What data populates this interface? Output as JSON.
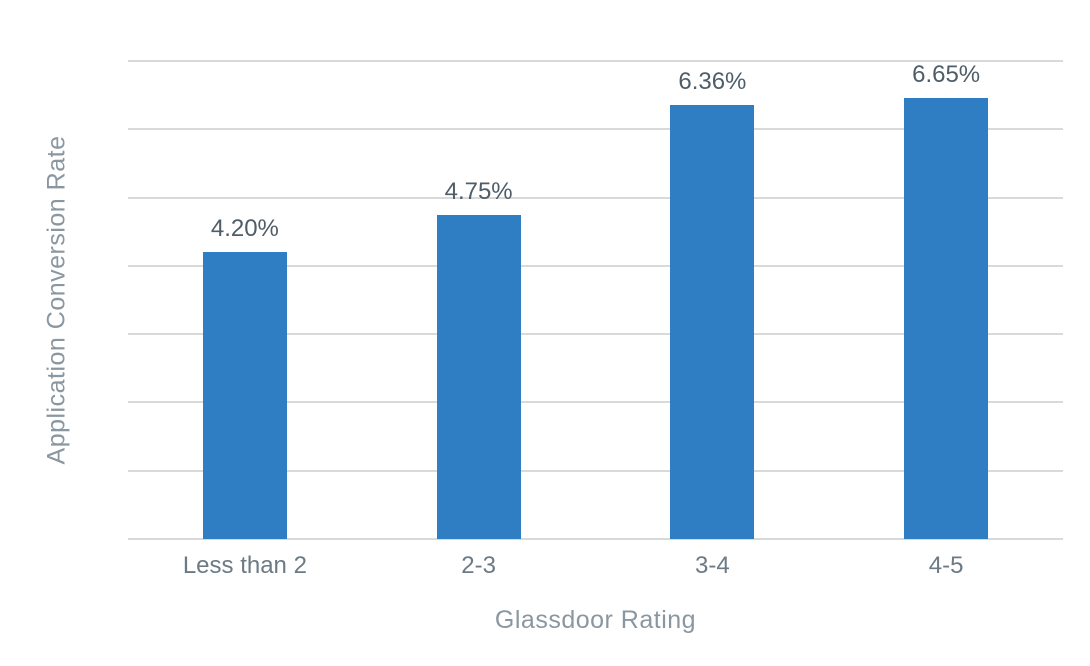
{
  "chart_data": {
    "type": "bar",
    "title": "",
    "xlabel": "Glassdoor Rating",
    "ylabel": "Application Conversion Rate",
    "categories": [
      "Less than 2",
      "2-3",
      "3-4",
      "4-5"
    ],
    "values": [
      4.2,
      4.75,
      6.36,
      6.65
    ],
    "value_labels": [
      "4.20%",
      "4.75%",
      "6.36%",
      "6.65%"
    ],
    "ylim": [
      0,
      7
    ],
    "grid_step": 1,
    "gridlines": "horizontal",
    "y_tick_labels_visible": false,
    "legend_position": "none",
    "colors": {
      "bar": "#2F7EC4",
      "value_label": "#4F5D68",
      "tick_label": "#6C7A85",
      "axis_title": "#8A97A1",
      "gridline": "#D9D9D9",
      "background": "#FFFFFF"
    }
  }
}
